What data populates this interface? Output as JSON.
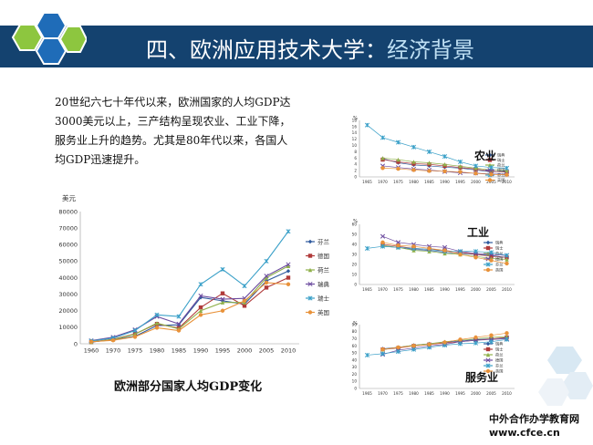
{
  "slide": {
    "title_main": "四、欧洲应用技术大学：",
    "title_sub": "经济背景",
    "intro_lines": [
      "20世纪六七十年代以来，欧洲国家的人均GDP达",
      "3000美元以上，三产结构呈现农业、工业下降，",
      "服务业上升的趋势。尤其是80年代以来，各国人",
      "均GDP迅速提升。"
    ],
    "caption": "欧洲部分国家人均GDP变化",
    "watermark_line1": "中外合作办学教育网",
    "watermark_line2": "www.cfce.cn"
  },
  "colors": {
    "header": "#14426f",
    "hex_blue": "#1f6cb8",
    "hex_green": "#8dc63f",
    "hex_light": "#d8e8f3",
    "series": [
      "#2e5a9e",
      "#b03a3a",
      "#8fb04a",
      "#6b4a9e",
      "#3aa0c8",
      "#e8923a"
    ]
  },
  "chart_data": [
    {
      "type": "line",
      "title": "",
      "ylabel": "美元",
      "x": [
        1960,
        1970,
        1975,
        1980,
        1985,
        1990,
        1995,
        2000,
        2005,
        2010
      ],
      "ylim": [
        0,
        80000
      ],
      "yticks": [
        0,
        10000,
        20000,
        30000,
        40000,
        50000,
        60000,
        70000,
        80000
      ],
      "legend_position": "right",
      "series": [
        {
          "name": "芬兰",
          "values": [
            1200,
            2400,
            4500,
            11000,
            11500,
            28000,
            26000,
            24000,
            38000,
            44000
          ]
        },
        {
          "name": "德国",
          "values": [
            1000,
            2700,
            6000,
            12000,
            9500,
            22000,
            30500,
            23000,
            34000,
            40000
          ]
        },
        {
          "name": "荷兰",
          "values": [
            1100,
            2500,
            5800,
            12500,
            9000,
            20000,
            25000,
            25000,
            40000,
            47000
          ]
        },
        {
          "name": "瑞典",
          "values": [
            1900,
            4000,
            8500,
            16500,
            12000,
            29000,
            27000,
            27500,
            41000,
            48000
          ]
        },
        {
          "name": "瑞士",
          "values": [
            1700,
            3400,
            8000,
            17500,
            16500,
            36000,
            45000,
            35000,
            50000,
            68000
          ]
        },
        {
          "name": "英国",
          "values": [
            1300,
            2100,
            4200,
            9700,
            8000,
            17500,
            20000,
            26000,
            37000,
            36000
          ]
        }
      ]
    },
    {
      "type": "line",
      "title": "农业",
      "ylabel": "%",
      "x": [
        1965,
        1970,
        1975,
        1980,
        1985,
        1990,
        1995,
        2000,
        2005,
        2010
      ],
      "ylim": [
        0,
        18
      ],
      "yticks": [
        0,
        2,
        4,
        6,
        8,
        10,
        12,
        14,
        16,
        18
      ],
      "legend_position": "right",
      "series": [
        {
          "name": "瑞典",
          "values": [
            null,
            5.8,
            4.5,
            3.8,
            3.5,
            3.1,
            2.8,
            2.2,
            1.6,
            1.8
          ]
        },
        {
          "name": "瑞士",
          "values": [
            null,
            5.5,
            4.8,
            4.2,
            4.0,
            3.5,
            3.0,
            2.5,
            1.8,
            1.5
          ]
        },
        {
          "name": "荷兰",
          "values": [
            null,
            6.0,
            5.5,
            4.8,
            4.5,
            4.0,
            3.4,
            2.8,
            2.2,
            2.0
          ]
        },
        {
          "name": "德国",
          "values": [
            null,
            3.5,
            3.0,
            2.5,
            2.2,
            1.7,
            1.3,
            1.2,
            0.9,
            0.9
          ]
        },
        {
          "name": "芬兰",
          "values": [
            16.5,
            12.5,
            11.0,
            9.5,
            8.0,
            6.5,
            4.8,
            3.5,
            3.0,
            2.8
          ]
        },
        {
          "name": "英国",
          "values": [
            null,
            2.8,
            2.6,
            2.2,
            1.9,
            1.8,
            1.6,
            1.1,
            0.8,
            0.7
          ]
        }
      ]
    },
    {
      "type": "line",
      "title": "工业",
      "ylabel": "%",
      "x": [
        1965,
        1970,
        1975,
        1980,
        1985,
        1990,
        1995,
        2000,
        2005,
        2010
      ],
      "ylim": [
        0,
        60
      ],
      "yticks": [
        0,
        10,
        20,
        30,
        40,
        50,
        60
      ],
      "legend_position": "right",
      "series": [
        {
          "name": "瑞典",
          "values": [
            null,
            38,
            37,
            35,
            34,
            32,
            31,
            30,
            29,
            27
          ]
        },
        {
          "name": "瑞士",
          "values": [
            null,
            40,
            38,
            36,
            35,
            34,
            32,
            30,
            28,
            27
          ]
        },
        {
          "name": "荷兰",
          "values": [
            null,
            39,
            37,
            34,
            33,
            31,
            30,
            28,
            26,
            25
          ]
        },
        {
          "name": "德国",
          "values": [
            null,
            48,
            42,
            40,
            38,
            37,
            33,
            31,
            30,
            29
          ]
        },
        {
          "name": "芬兰",
          "values": [
            36,
            38,
            37,
            36,
            35,
            33,
            33,
            33,
            32,
            29
          ]
        },
        {
          "name": "英国",
          "values": [
            null,
            42,
            39,
            38,
            36,
            34,
            30,
            27,
            24,
            21
          ]
        }
      ]
    },
    {
      "type": "line",
      "title": "服务业",
      "ylabel": "%",
      "x": [
        1965,
        1970,
        1975,
        1980,
        1985,
        1990,
        1995,
        2000,
        2005,
        2010
      ],
      "ylim": [
        0,
        90
      ],
      "yticks": [
        0,
        10,
        20,
        30,
        40,
        50,
        60,
        70,
        80,
        90
      ],
      "legend_position": "right",
      "series": [
        {
          "name": "瑞典",
          "values": [
            null,
            56,
            58,
            61,
            63,
            65,
            67,
            69,
            70,
            71
          ]
        },
        {
          "name": "瑞士",
          "values": [
            null,
            55,
            57,
            60,
            62,
            64,
            66,
            68,
            70,
            72
          ]
        },
        {
          "name": "荷兰",
          "values": [
            null,
            55,
            58,
            61,
            63,
            66,
            68,
            70,
            72,
            73
          ]
        },
        {
          "name": "德国",
          "values": [
            null,
            48,
            54,
            57,
            60,
            62,
            66,
            68,
            69,
            70
          ]
        },
        {
          "name": "芬兰",
          "values": [
            47,
            49,
            52,
            55,
            58,
            61,
            63,
            64,
            66,
            69
          ]
        },
        {
          "name": "英国",
          "values": [
            null,
            55,
            58,
            60,
            62,
            65,
            69,
            72,
            75,
            78
          ]
        }
      ]
    }
  ]
}
